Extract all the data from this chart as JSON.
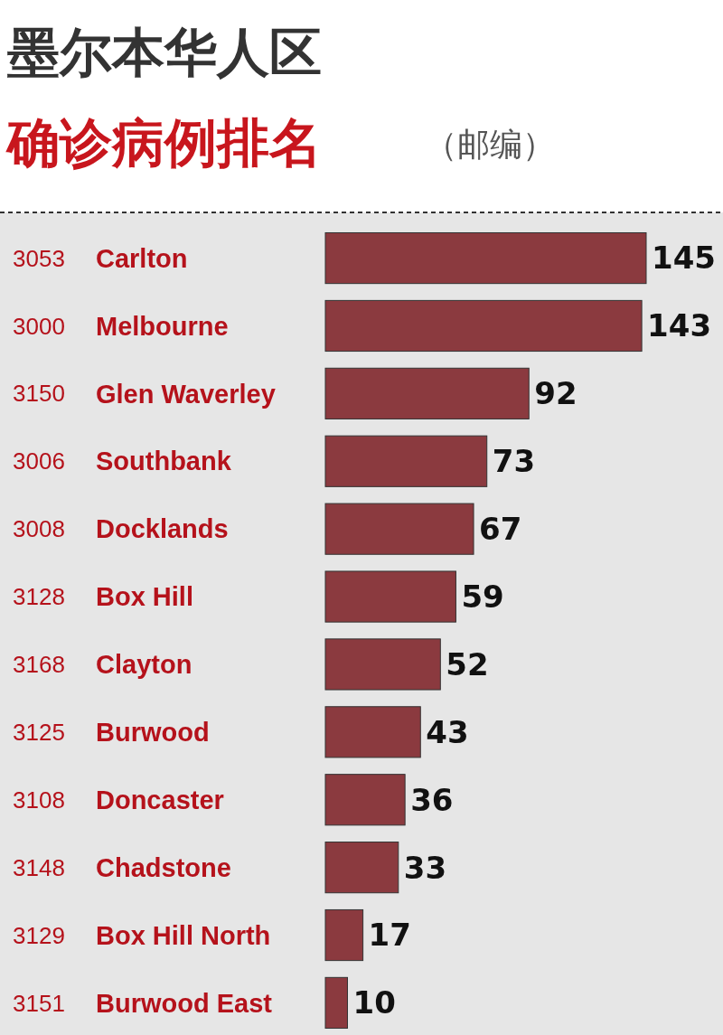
{
  "chart_data": {
    "type": "bar",
    "orientation": "horizontal",
    "title": "墨尔本华人区",
    "subtitle": "确诊病例排名",
    "annotations": [
      "（邮编）"
    ],
    "categories": [
      "3053 Carlton",
      "3000 Melbourne",
      "3150 Glen Waverley",
      "3006 Southbank",
      "3008 Docklands",
      "3128 Box Hill",
      "3168 Clayton",
      "3125 Burwood",
      "3108 Doncaster",
      "3148 Chadstone",
      "3129 Box Hill North",
      "3151 Burwood East"
    ],
    "values": [
      145,
      143,
      92,
      73,
      67,
      59,
      52,
      43,
      36,
      33,
      17,
      10
    ],
    "color": "#8b3a3f",
    "data_labels": true
  }
}
